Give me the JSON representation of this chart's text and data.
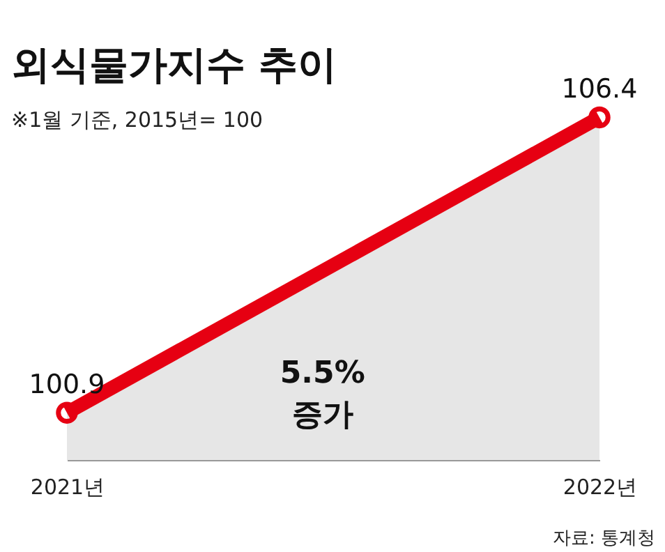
{
  "chart_data": {
    "type": "area",
    "title": "외식물가지수 추이",
    "subtitle": "※1월 기준, 2015년= 100",
    "categories": [
      "2021년",
      "2022년"
    ],
    "series": [
      {
        "color": "#e60012",
        "values": [
          100.9,
          106.4
        ]
      }
    ],
    "data_labels": true,
    "marker": "circle",
    "grid": false,
    "annotations": [
      "5.5% 증가",
      "자료: 통계청"
    ]
  }
}
